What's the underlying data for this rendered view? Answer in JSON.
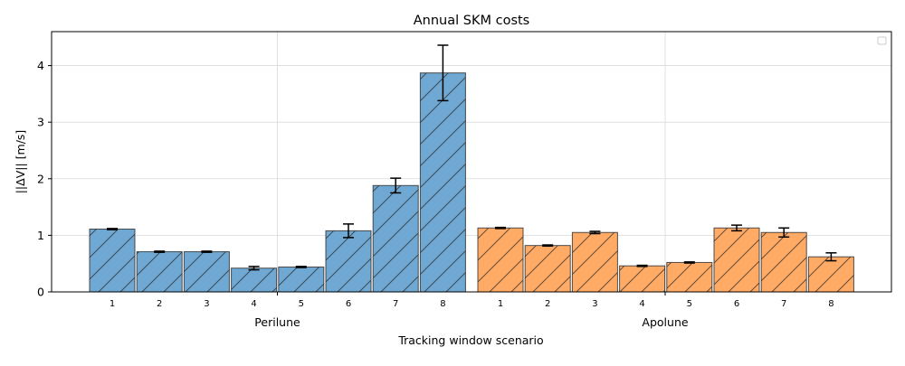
{
  "chart_data": {
    "type": "bar",
    "title": "Annual SKM costs",
    "xlabel": "Tracking window scenario",
    "ylabel": "||ΔV|| [m/s]",
    "ylim": [
      0,
      4.6
    ],
    "yticks": [
      0,
      1,
      2,
      3,
      4
    ],
    "grid": true,
    "legend": {
      "placement": "top-right",
      "entries": []
    },
    "groups": [
      {
        "name": "Perilune",
        "color": "#6fa8d2",
        "hatch": "/",
        "categories": [
          "1",
          "2",
          "3",
          "4",
          "5",
          "6",
          "7",
          "8"
        ],
        "values": [
          1.11,
          0.71,
          0.71,
          0.42,
          0.44,
          1.08,
          1.88,
          3.87
        ],
        "errors": [
          0.01,
          0.01,
          0.01,
          0.03,
          0.01,
          0.12,
          0.13,
          0.49
        ]
      },
      {
        "name": "Apolune",
        "color": "#ffab66",
        "hatch": "/",
        "categories": [
          "1",
          "2",
          "3",
          "4",
          "5",
          "6",
          "7",
          "8"
        ],
        "values": [
          1.13,
          0.82,
          1.05,
          0.46,
          0.52,
          1.13,
          1.05,
          0.62
        ],
        "errors": [
          0.01,
          0.01,
          0.02,
          0.01,
          0.01,
          0.05,
          0.08,
          0.07
        ]
      }
    ]
  }
}
